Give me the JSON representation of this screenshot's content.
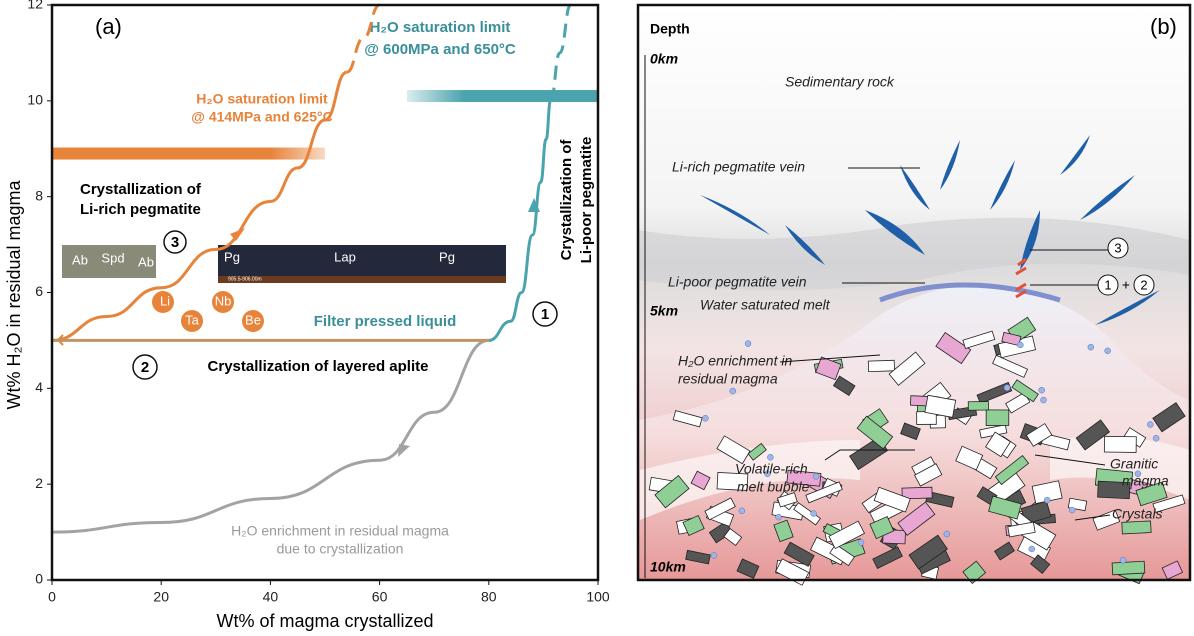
{
  "chart_data": {
    "type": "line",
    "panel_label": "(a)",
    "x_label": "Wt% of magma crystallized",
    "y_label": "Wt% H₂O in residual magma",
    "xlim": [
      0,
      100
    ],
    "ylim": [
      0,
      12
    ],
    "xticks": [
      0,
      20,
      40,
      60,
      80,
      100
    ],
    "yticks": [
      0,
      2,
      4,
      6,
      8,
      10,
      12
    ],
    "series": [
      {
        "color": "#a3a3a3",
        "style": "solid",
        "x": [
          0,
          20,
          40,
          60,
          70,
          80
        ],
        "values": [
          1,
          1.2,
          1.7,
          2.5,
          3.5,
          5
        ]
      },
      {
        "color": "#4aa3ad",
        "style": "solid",
        "x": [
          80,
          84,
          86,
          88,
          89.5,
          90.5,
          91.3
        ],
        "values": [
          5,
          5.4,
          6,
          7.2,
          8.3,
          9.2,
          10
        ]
      },
      {
        "color": "#4aa3ad",
        "style": "dashed",
        "x": [
          91.3,
          93,
          95
        ],
        "values": [
          10,
          11,
          12
        ]
      },
      {
        "color": "#e8833a",
        "style": "solid",
        "x": [
          0,
          10,
          20,
          30,
          40,
          45,
          50,
          54
        ],
        "values": [
          5,
          5.5,
          6.1,
          6.9,
          7.9,
          8.6,
          9.6,
          10.6
        ]
      },
      {
        "color": "#e8833a",
        "style": "dashed",
        "x": [
          54,
          57,
          60
        ],
        "values": [
          10.6,
          11.3,
          12
        ]
      },
      {
        "color": "#c09468",
        "style": "solid",
        "x": [
          0,
          80
        ],
        "values": [
          5,
          5
        ]
      },
      {
        "color": "#e8833a",
        "style": "band",
        "x": [
          0,
          50
        ],
        "values": [
          8.9,
          8.9
        ]
      },
      {
        "color": "#4aa3ad",
        "style": "band",
        "x": [
          65,
          100
        ],
        "values": [
          10.1,
          10.1
        ]
      }
    ],
    "annotations": {
      "teal_limit": "H₂O saturation limit",
      "teal_cond": "@ 600MPa and 650°C",
      "orange_limit": "H₂O saturation limit",
      "orange_cond": "@ 414MPa and 625°C",
      "li_rich_1": "Crystallization of",
      "li_rich_2": "Li-rich pegmatite",
      "c3": "3",
      "ab1": "Ab",
      "spd": "Spd",
      "ab2": "Ab",
      "pg1": "Pg",
      "lap": "Lap",
      "pg2": "Pg",
      "depth_range": "905.5-906.00m",
      "li": "Li",
      "nb": "Nb",
      "ta": "Ta",
      "be": "Be",
      "filter": "Filter pressed liquid",
      "c1": "1",
      "c2": "2",
      "aplite": "Crystallization of layered aplite",
      "li_poor_1": "Crystallization of",
      "li_poor_2": "Li-poor pegmatite",
      "enrich_1": "H₂O enrichment in residual magma",
      "enrich_2": "due to crystallization"
    }
  },
  "diagram": {
    "panel_label": "(b)",
    "depth": "Depth",
    "d0": "0km",
    "d5": "5km",
    "d10": "10km",
    "sedimentary": "Sedimentary rock",
    "li_rich_vein": "Li-rich pegmatite vein",
    "c3": "3",
    "li_poor_vein": "Li-poor pegmatite vein",
    "c1": "1",
    "plus": "+",
    "c2": "2",
    "water": "Water saturated melt",
    "enrich_1": "H₂O enrichment in",
    "enrich_2": "residual magma",
    "bubble_1": "Volatile-rich",
    "bubble_2": "melt bubble",
    "granitic_1": "Granitic",
    "granitic_2": "magma",
    "crystals": "Crystals"
  }
}
